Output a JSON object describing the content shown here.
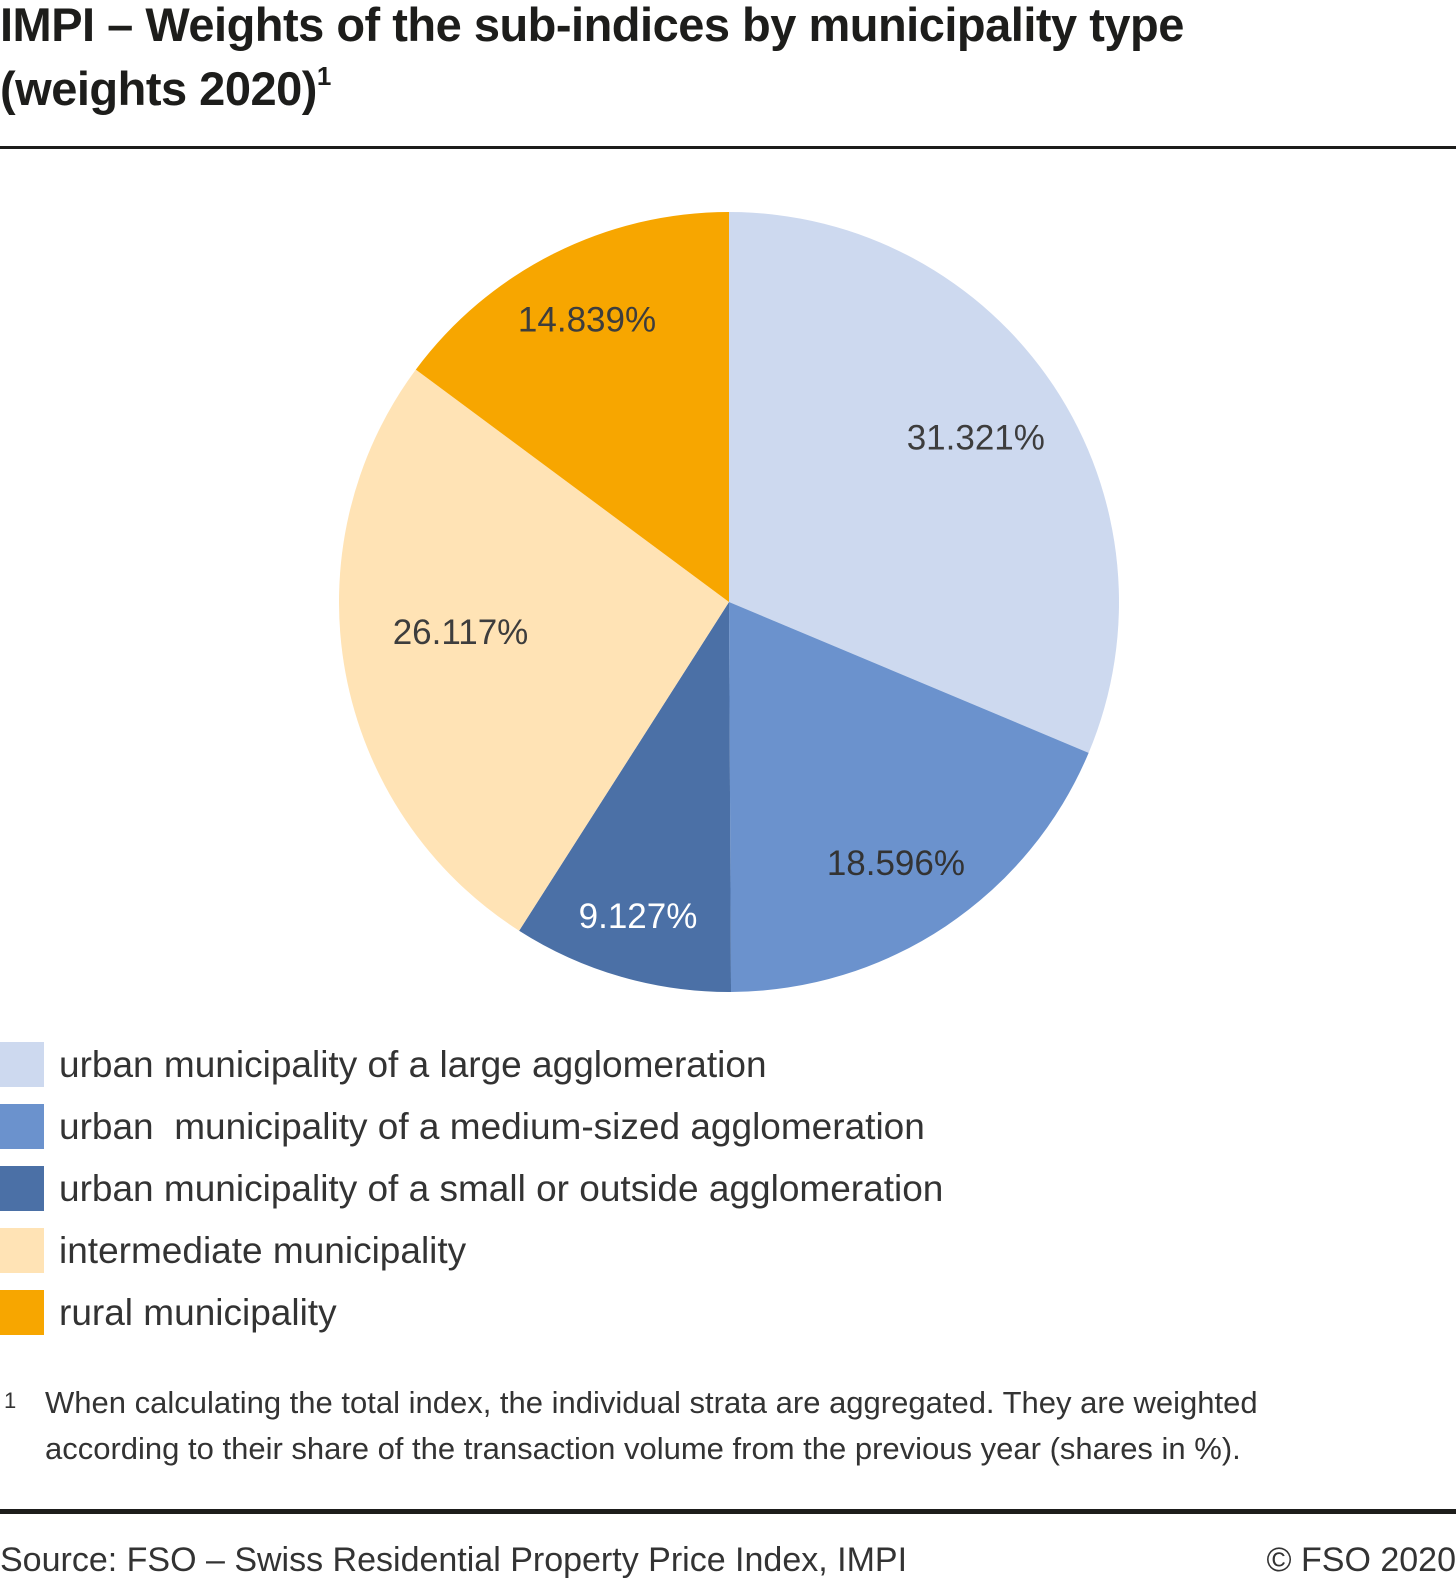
{
  "header": {
    "title_line1": "IMPI – Weights of the sub-indices by municipality type",
    "title_line2": "(weights 2020)",
    "footnote_marker": "1"
  },
  "chart_data": {
    "type": "pie",
    "title": "IMPI – Weights of the sub-indices by municipality type (weights 2020)",
    "unit": "%",
    "start_angle_deg": 0,
    "direction": "clockwise",
    "legend_position": "bottom-left",
    "slices": [
      {
        "label": "urban municipality of a large agglomeration",
        "value": 31.321,
        "display": "31.321%",
        "color": "#cdd9ef",
        "label_color": "#3d3d3d"
      },
      {
        "label": "urban  municipality of a medium-sized agglomeration",
        "value": 18.596,
        "display": "18.596%",
        "color": "#6b92cd",
        "label_color": "#333333"
      },
      {
        "label": "urban municipality of a small or outside agglomeration",
        "value": 9.127,
        "display": "9.127%",
        "color": "#4b70a6",
        "label_color": "#ffffff"
      },
      {
        "label": "intermediate municipality",
        "value": 26.117,
        "display": "26.117%",
        "color": "#ffe3b5",
        "label_color": "#3d3d3d"
      },
      {
        "label": "rural municipality",
        "value": 14.839,
        "display": "14.839%",
        "color": "#f7a600",
        "label_color": "#3d3d3d"
      }
    ]
  },
  "footnote": {
    "marker": "1",
    "text": "When calculating the total index, the individual strata are aggregated. They are weighted according to their share of the transaction volume from the previous year (shares in %)."
  },
  "footer": {
    "source": "Source: FSO – Swiss Residential Property Price Index, IMPI",
    "copyright": "© FSO 2020"
  }
}
